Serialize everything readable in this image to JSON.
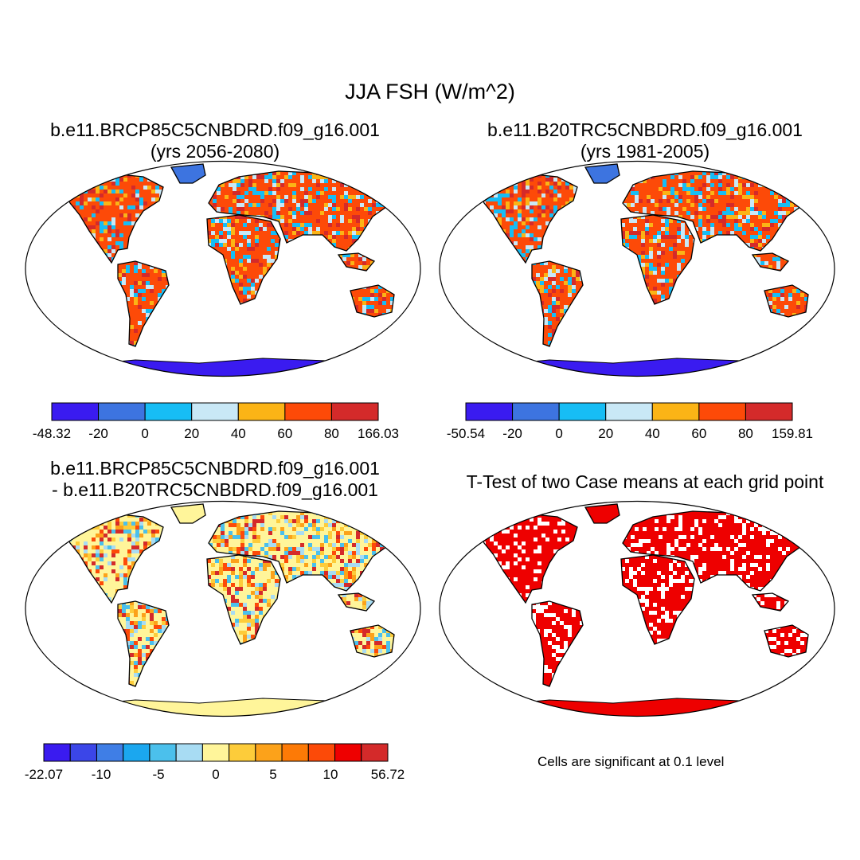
{
  "main_title": "JJA FSH (W/m^2)",
  "panels": [
    {
      "title_line1": "b.e11.BRCP85C5CNBDRD.f09_g16.001",
      "title_line2": "(yrs 2056-2080)"
    },
    {
      "title_line1": "b.e11.B20TRC5CNBDRD.f09_g16.001",
      "title_line2": "(yrs 1981-2005)"
    },
    {
      "title_line1": "b.e11.BRCP85C5CNBDRD.f09_g16.001",
      "title_line2": "- b.e11.B20TRC5CNBDRD.f09_g16.001"
    },
    {
      "title_line1": "T-Test of two Case means at each grid point"
    }
  ],
  "colorbars": [
    {
      "colors": [
        "#3a1bf0",
        "#3d74e0",
        "#17bdf5",
        "#c9e8f6",
        "#fbb416",
        "#fd4a08",
        "#d42a2a"
      ],
      "labels": [
        "-48.32",
        "-20",
        "0",
        "20",
        "40",
        "60",
        "80",
        "166.03"
      ]
    },
    {
      "colors": [
        "#3a1bf0",
        "#3d74e0",
        "#17bdf5",
        "#c9e8f6",
        "#fbb416",
        "#fd4a08",
        "#d42a2a"
      ],
      "labels": [
        "-50.54",
        "-20",
        "0",
        "20",
        "40",
        "60",
        "80",
        "159.81"
      ]
    },
    {
      "colors": [
        "#3a1bf0",
        "#3b46e8",
        "#3f7ee6",
        "#1ba7ef",
        "#4bc0ec",
        "#a8dcf3",
        "#fff59a",
        "#fdcc3a",
        "#fca21a",
        "#fd7a06",
        "#fc4a08",
        "#ee0000",
        "#d42a2a"
      ],
      "labels": [
        "-22.07",
        "-10",
        "-5",
        "0",
        "5",
        "10",
        "56.72"
      ]
    }
  ],
  "significance_note": "Cells are significant at 0.1 level",
  "map_palettes": {
    "current": [
      "#fd4a08",
      "#fbb416",
      "#d42a2a",
      "#17bdf5",
      "#c9e8f6"
    ],
    "difference": [
      "#fff59a",
      "#fdcc3a",
      "#fca21a",
      "#4bc0ec",
      "#a8dcf3",
      "#fd4a08",
      "#d42a2a"
    ],
    "significance": [
      "#ee0000"
    ],
    "antarctica_current": "#3a1bf0",
    "antarctica_difference": "#fff59a",
    "greenland_current": "#3d74e0"
  }
}
